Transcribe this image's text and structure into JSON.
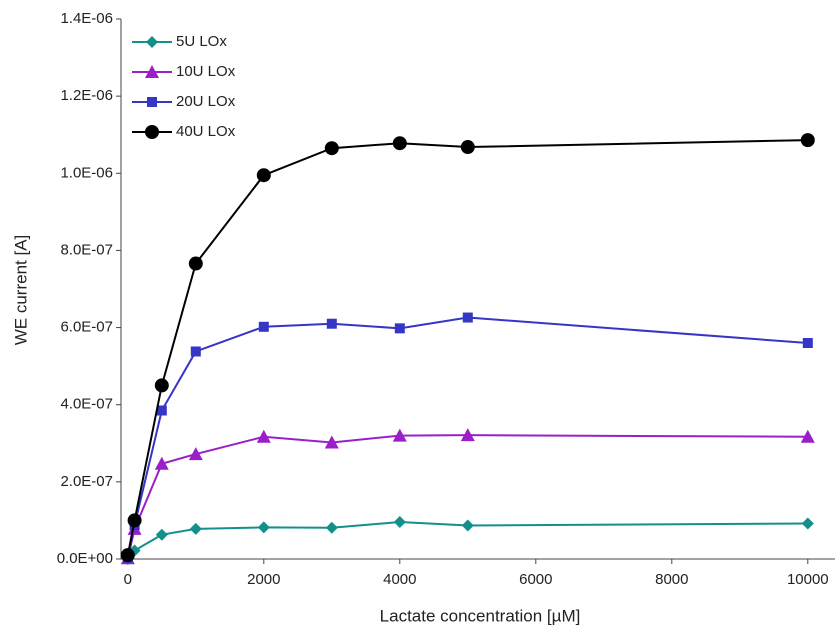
{
  "chart_data": {
    "type": "line",
    "xlabel": "Lactate concentration [µM]",
    "ylabel": "WE current [A]",
    "x": [
      0,
      100,
      500,
      1000,
      2000,
      3000,
      4000,
      5000,
      10000
    ],
    "series": [
      {
        "name": "5U LOx",
        "color": "#14908c",
        "marker": "diamond",
        "values": [
          0,
          2.2e-08,
          6.3e-08,
          7.8e-08,
          8.2e-08,
          8.1e-08,
          9.6e-08,
          8.7e-08,
          9.2e-08
        ]
      },
      {
        "name": "10U LOx",
        "color": "#9b1fc9",
        "marker": "triangle",
        "values": [
          2e-09,
          7.8e-08,
          2.47e-07,
          2.72e-07,
          3.17e-07,
          3.02e-07,
          3.2e-07,
          3.21e-07,
          3.17e-07
        ]
      },
      {
        "name": "20U LOx",
        "color": "#3535c6",
        "marker": "square",
        "values": [
          3e-09,
          8.8e-08,
          3.85e-07,
          5.38e-07,
          6.02e-07,
          6.1e-07,
          5.98e-07,
          6.26e-07,
          5.6e-07
        ]
      },
      {
        "name": "40U LOx",
        "color": "#000000",
        "marker": "circle",
        "values": [
          1e-08,
          1e-07,
          4.5e-07,
          7.66e-07,
          9.95e-07,
          1.065e-06,
          1.078e-06,
          1.068e-06,
          1.086e-06
        ]
      }
    ],
    "xlim": [
      -100,
      10400
    ],
    "xticks": [
      0,
      2000,
      4000,
      6000,
      8000,
      10000
    ],
    "ylim": [
      0,
      1.4e-06
    ],
    "yticks": [
      {
        "value": 0,
        "label": "0.0E+00"
      },
      {
        "value": 2e-07,
        "label": "2.0E-07"
      },
      {
        "value": 4e-07,
        "label": "4.0E-07"
      },
      {
        "value": 6e-07,
        "label": "6.0E-07"
      },
      {
        "value": 8e-07,
        "label": "8.0E-07"
      },
      {
        "value": 1e-06,
        "label": "1.0E-06"
      },
      {
        "value": 1.2e-06,
        "label": "1.2E-06"
      },
      {
        "value": 1.4e-06,
        "label": "1.4E-06"
      }
    ],
    "grid": false,
    "legend": "upper-left"
  }
}
